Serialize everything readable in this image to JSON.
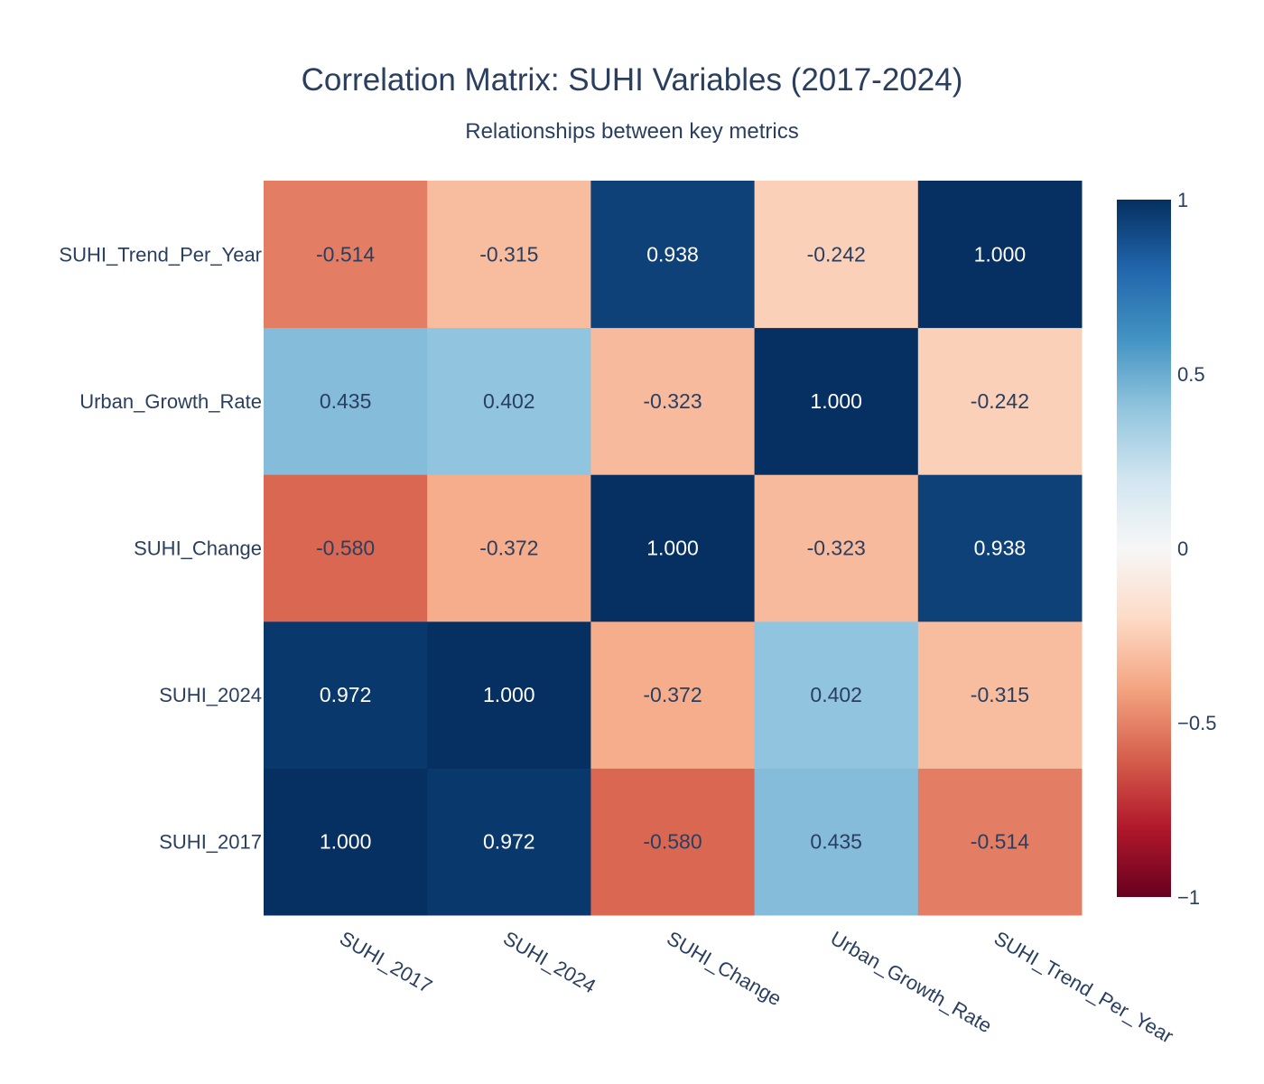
{
  "chart_data": {
    "type": "heatmap",
    "title": "Correlation Matrix: SUHI Variables (2017-2024)",
    "subtitle": "Relationships between key metrics",
    "x_labels": [
      "SUHI_2017",
      "SUHI_2024",
      "SUHI_Change",
      "Urban_Growth_Rate",
      "SUHI_Trend_Per_Year"
    ],
    "y_labels": [
      "SUHI_2017",
      "SUHI_2024",
      "SUHI_Change",
      "Urban_Growth_Rate",
      "SUHI_Trend_Per_Year"
    ],
    "matrix": [
      [
        1.0,
        0.972,
        -0.58,
        0.435,
        -0.514
      ],
      [
        0.972,
        1.0,
        -0.372,
        0.402,
        -0.315
      ],
      [
        -0.58,
        -0.372,
        1.0,
        -0.323,
        0.938
      ],
      [
        0.435,
        0.402,
        -0.323,
        1.0,
        -0.242
      ],
      [
        -0.514,
        -0.315,
        0.938,
        -0.242,
        1.0
      ]
    ],
    "value_format": "3 decimals",
    "zrange": [
      -1,
      1
    ],
    "colorscale": "RdBu",
    "colorbar": {
      "ticks": [
        1,
        0.5,
        0,
        -0.5,
        -1
      ],
      "tick_labels": [
        "1",
        "0.5",
        "0",
        "−0.5",
        "−1"
      ]
    }
  },
  "colors": {
    "text": "#2a3f5f",
    "background": "#ffffff"
  }
}
